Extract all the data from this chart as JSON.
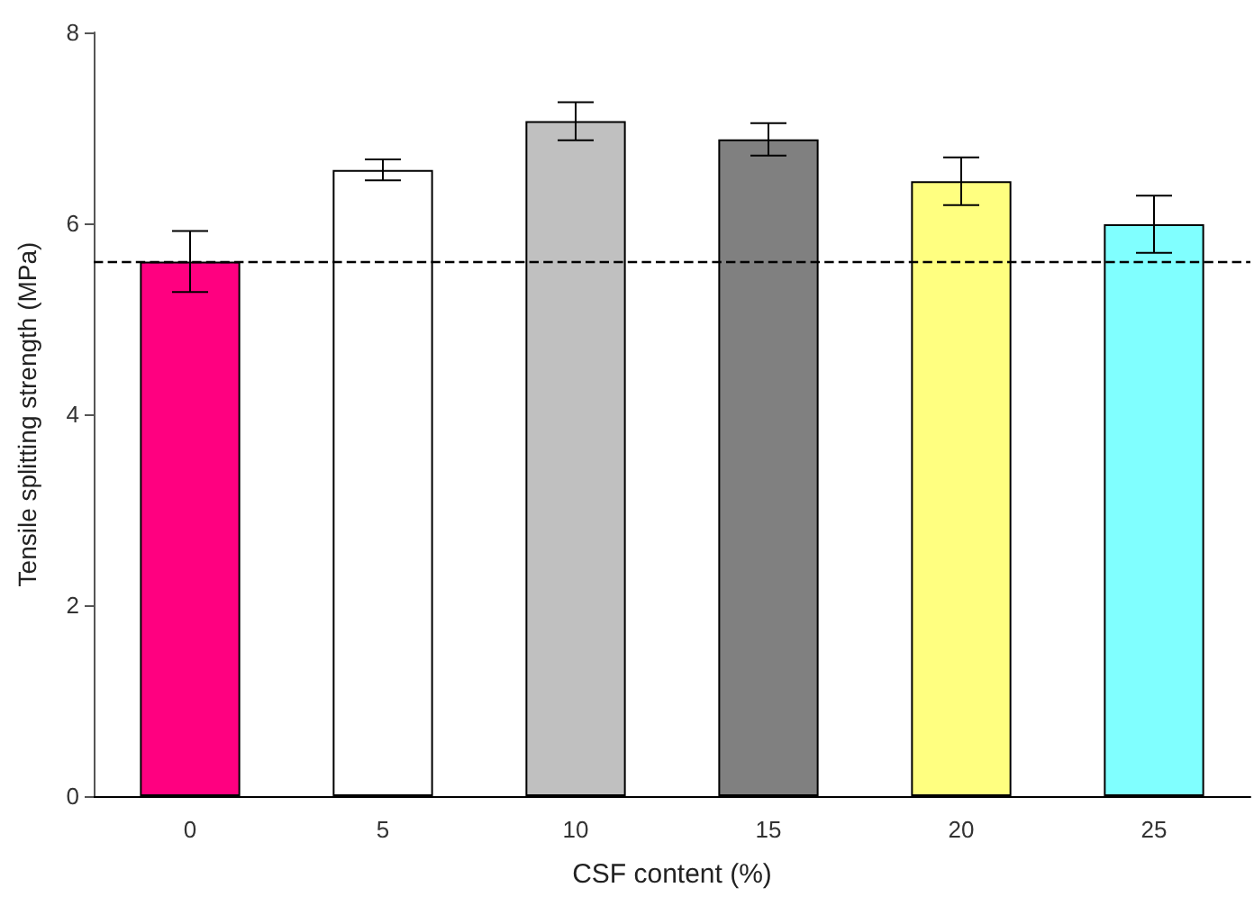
{
  "chart_data": {
    "type": "bar",
    "xlabel": "CSF content (%)",
    "ylabel": "Tensile splitting strength (MPa)",
    "categories": [
      "0",
      "5",
      "10",
      "15",
      "20",
      "25"
    ],
    "values": [
      5.6,
      6.56,
      7.07,
      6.88,
      6.44,
      5.99
    ],
    "errors": [
      0.32,
      0.11,
      0.2,
      0.17,
      0.25,
      0.3
    ],
    "colors": [
      "#ff0080",
      "#ffffff",
      "#c0c0c0",
      "#808080",
      "#ffff80",
      "#80ffff"
    ],
    "ylim": [
      0,
      8
    ],
    "yticks": [
      0,
      2,
      4,
      6,
      8
    ],
    "grid": false,
    "ref_lines": [
      {
        "axis": "y",
        "value": 5.6,
        "label": null,
        "color": "#000000",
        "line_style": "dashed"
      }
    ]
  }
}
